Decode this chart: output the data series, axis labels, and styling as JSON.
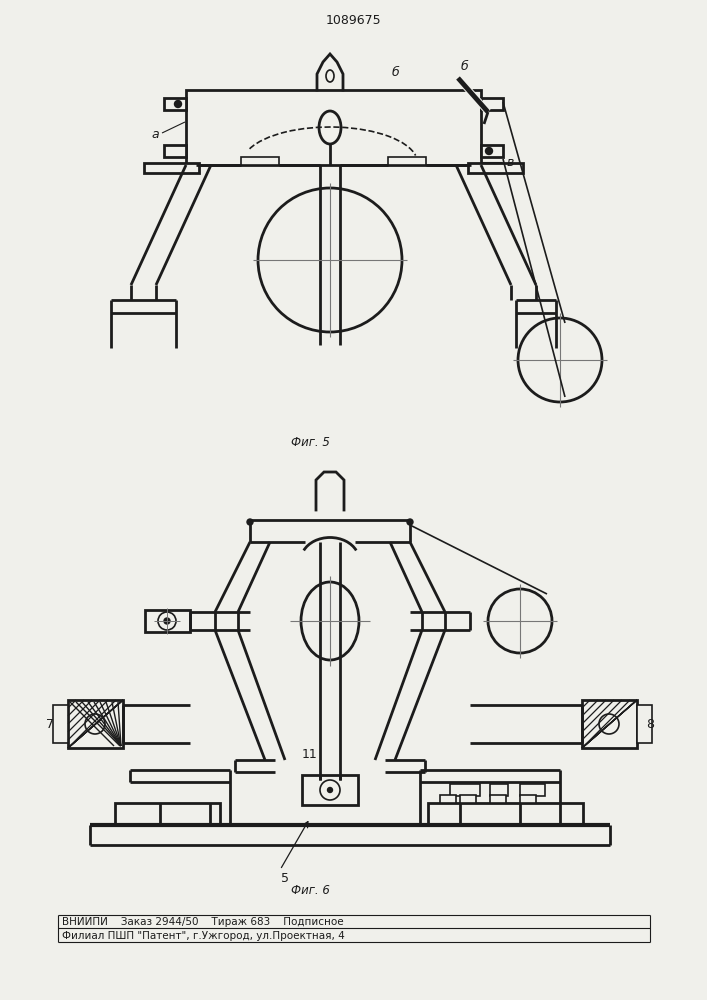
{
  "title": "1089675",
  "label_a": "а",
  "label_b1": "б",
  "label_b2": "б",
  "label_v": "в",
  "label_7": "7",
  "label_8": "8",
  "label_11": "11",
  "label_5": "5",
  "fig5_label": "Фиг. 5",
  "fig6_label": "Фиг. 6",
  "bottom_line1": "ВНИИПИ    Заказ 2944/50    Тираж 683    Подписное",
  "bottom_line2": "Филиал ПШП \"Патент\", г.Ужгород, ул.Проектная, 4",
  "bg_color": "#f0f0eb",
  "line_color": "#1c1c1c",
  "lw": 1.2,
  "lw2": 2.0
}
